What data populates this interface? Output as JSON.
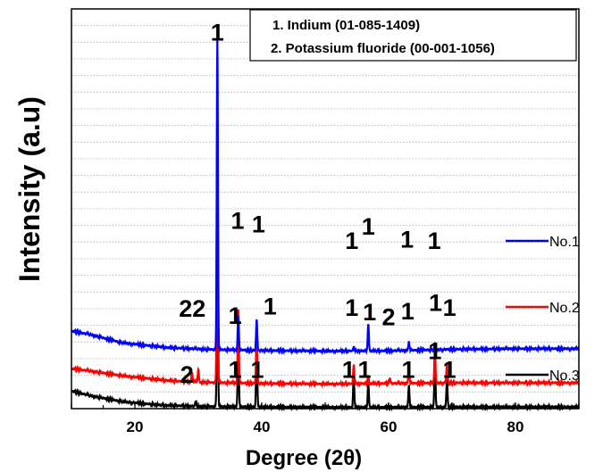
{
  "chart_data": {
    "type": "line",
    "xlabel": "Degree (2θ)",
    "ylabel": "Intensity (a.u)",
    "xlim": [
      10,
      90
    ],
    "xticks": [
      20,
      40,
      60,
      80
    ],
    "y_tick_labels": "none",
    "grid": "horizontal dotted",
    "legend": "right",
    "reference_box": {
      "position": "top-right",
      "entries": [
        "1. Indium (01-085-1409)",
        "2. Potassium fluoride (00-001-1056)"
      ]
    },
    "series": [
      {
        "name": "No.1",
        "color": "#0000ff",
        "baseline": [
          [
            10,
            6.6
          ],
          [
            13,
            6.3
          ],
          [
            18,
            5.6
          ],
          [
            25,
            5.2
          ],
          [
            31,
            5.05
          ],
          [
            40,
            4.95
          ],
          [
            50,
            4.9
          ],
          [
            60,
            4.92
          ],
          [
            70,
            5.05
          ],
          [
            80,
            5.1
          ],
          [
            90,
            5.1
          ]
        ],
        "peaks": [
          {
            "x": 33.0,
            "height": 26.4,
            "label": "1"
          },
          {
            "x": 36.3,
            "height": 3.0,
            "label": "1"
          },
          {
            "x": 39.2,
            "height": 2.6,
            "label": "1"
          },
          {
            "x": 54.5,
            "height": 0.35,
            "label": "1"
          },
          {
            "x": 56.8,
            "height": 2.3,
            "label": "1"
          },
          {
            "x": 63.2,
            "height": 0.7,
            "label": "1"
          },
          {
            "x": 67.3,
            "height": 0.4,
            "label": "1"
          }
        ]
      },
      {
        "name": "No.2",
        "color": "#ff0000",
        "baseline": [
          [
            10,
            3.4
          ],
          [
            13,
            3.2
          ],
          [
            18,
            2.8
          ],
          [
            25,
            2.4
          ],
          [
            30,
            2.25
          ],
          [
            40,
            2.15
          ],
          [
            50,
            2.1
          ],
          [
            60,
            2.15
          ],
          [
            70,
            2.2
          ],
          [
            80,
            2.2
          ],
          [
            90,
            2.2
          ]
        ],
        "peaks": [
          {
            "x": 29.0,
            "height": 0.8,
            "label": "2"
          },
          {
            "x": 30.0,
            "height": 1.1,
            "label": "2"
          },
          {
            "x": 33.0,
            "height": 24.0,
            "label": "1"
          },
          {
            "x": 36.3,
            "height": 6.4,
            "label": "1"
          },
          {
            "x": 39.2,
            "height": 4.8,
            "label": "1"
          },
          {
            "x": 54.5,
            "height": 1.6,
            "label": "1"
          },
          {
            "x": 56.8,
            "height": 0.6,
            "label": "1"
          },
          {
            "x": 60.2,
            "height": 0.4,
            "label": "2"
          },
          {
            "x": 63.2,
            "height": 1.2,
            "label": "1"
          },
          {
            "x": 67.3,
            "height": 2.9,
            "label": "1"
          },
          {
            "x": 69.2,
            "height": 1.7,
            "label": "1"
          }
        ]
      },
      {
        "name": "No.3",
        "color": "#000000",
        "baseline": [
          [
            10,
            1.5
          ],
          [
            13,
            1.1
          ],
          [
            18,
            0.6
          ],
          [
            24,
            0.3
          ],
          [
            30,
            0.2
          ],
          [
            40,
            0.15
          ],
          [
            50,
            0.12
          ],
          [
            60,
            0.12
          ],
          [
            70,
            0.15
          ],
          [
            80,
            0.15
          ],
          [
            90,
            0.15
          ]
        ],
        "peaks": [
          {
            "x": 29.6,
            "height": 0.4,
            "label": "2"
          },
          {
            "x": 33.0,
            "height": 14.5,
            "label": ""
          },
          {
            "x": 36.3,
            "height": 6.0,
            "label": "1"
          },
          {
            "x": 39.2,
            "height": 5.3,
            "label": "1"
          },
          {
            "x": 54.5,
            "height": 2.6,
            "label": "1"
          },
          {
            "x": 56.8,
            "height": 2.0,
            "label": "1"
          },
          {
            "x": 63.2,
            "height": 1.8,
            "label": "1"
          },
          {
            "x": 67.3,
            "height": 4.4,
            "label": "1"
          },
          {
            "x": 69.2,
            "height": 2.3,
            "label": "1"
          }
        ]
      }
    ],
    "annotations": [
      {
        "text": "1",
        "x": 33.0,
        "y": 31.3
      },
      {
        "text": "1",
        "x": 36.2,
        "y": 15.3
      },
      {
        "text": "1",
        "x": 39.5,
        "y": 15.0
      },
      {
        "text": "1",
        "x": 54.2,
        "y": 13.6
      },
      {
        "text": "1",
        "x": 56.8,
        "y": 14.8
      },
      {
        "text": "1",
        "x": 62.9,
        "y": 13.7
      },
      {
        "text": "1",
        "x": 67.2,
        "y": 13.6
      },
      {
        "text": "2",
        "x": 28.0,
        "y": 7.8
      },
      {
        "text": "2",
        "x": 30.1,
        "y": 7.8
      },
      {
        "text": "1",
        "x": 35.8,
        "y": 7.2
      },
      {
        "text": "1",
        "x": 41.3,
        "y": 8.0
      },
      {
        "text": "1",
        "x": 54.2,
        "y": 7.9
      },
      {
        "text": "1",
        "x": 57.0,
        "y": 7.5
      },
      {
        "text": "2",
        "x": 60.0,
        "y": 7.1
      },
      {
        "text": "1",
        "x": 63.0,
        "y": 7.6
      },
      {
        "text": "1",
        "x": 67.4,
        "y": 8.3
      },
      {
        "text": "1",
        "x": 69.6,
        "y": 7.9
      },
      {
        "text": "2",
        "x": 28.2,
        "y": 2.2
      },
      {
        "text": "1",
        "x": 35.8,
        "y": 2.6
      },
      {
        "text": "1",
        "x": 39.3,
        "y": 2.6
      },
      {
        "text": "1",
        "x": 53.7,
        "y": 2.6
      },
      {
        "text": "1",
        "x": 56.2,
        "y": 2.6
      },
      {
        "text": "1",
        "x": 63.1,
        "y": 2.6
      },
      {
        "text": "1",
        "x": 67.3,
        "y": 4.2
      },
      {
        "text": "1",
        "x": 69.6,
        "y": 2.6
      }
    ]
  }
}
